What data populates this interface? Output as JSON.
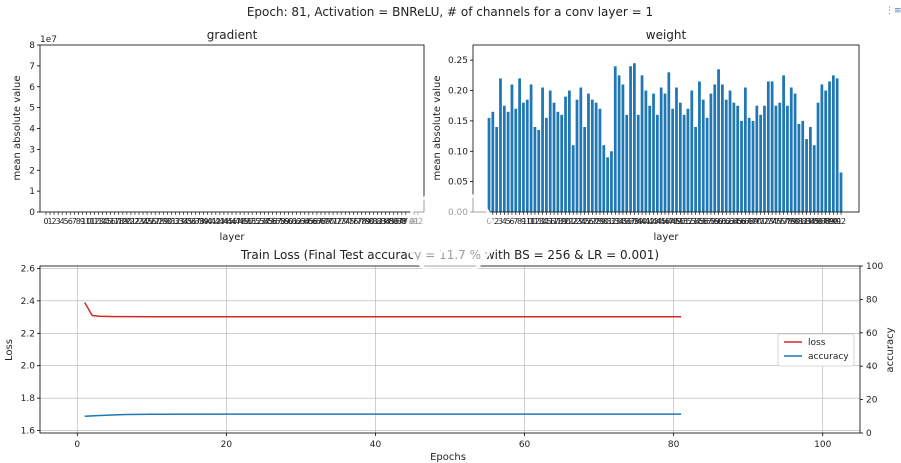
{
  "suptitle": "Epoch: 81, Activation = BNReLU, # of channels for a conv layer = 1",
  "colors": {
    "bar": "#1f77b4",
    "loss": "#d62728",
    "accuracy": "#1f77b4",
    "grid": "#b0b0b0"
  },
  "chart_data": [
    {
      "type": "bar",
      "title": "gradient",
      "xlabel": "layer",
      "ylabel": "mean absolute value",
      "offset_text": "1e7",
      "ylim": [
        0,
        8
      ],
      "yticks": [
        0,
        1,
        2,
        3,
        4,
        5,
        6,
        7,
        8
      ],
      "values": []
    },
    {
      "type": "bar",
      "title": "weight",
      "xlabel": "layer",
      "ylabel": "mean absolute value",
      "ylim": [
        0,
        0.275
      ],
      "yticks": [
        "0.00",
        "0.05",
        "0.10",
        "0.15",
        "0.20",
        "0.25"
      ],
      "values": [
        0.155,
        0.165,
        0.14,
        0.22,
        0.175,
        0.165,
        0.21,
        0.17,
        0.22,
        0.18,
        0.185,
        0.21,
        0.14,
        0.135,
        0.205,
        0.155,
        0.2,
        0.18,
        0.165,
        0.16,
        0.19,
        0.2,
        0.11,
        0.185,
        0.205,
        0.14,
        0.195,
        0.185,
        0.18,
        0.17,
        0.11,
        0.09,
        0.1,
        0.24,
        0.225,
        0.21,
        0.16,
        0.24,
        0.245,
        0.16,
        0.225,
        0.2,
        0.175,
        0.195,
        0.16,
        0.205,
        0.195,
        0.23,
        0.17,
        0.205,
        0.18,
        0.16,
        0.17,
        0.2,
        0.14,
        0.215,
        0.185,
        0.155,
        0.195,
        0.21,
        0.235,
        0.21,
        0.185,
        0.2,
        0.18,
        0.175,
        0.15,
        0.205,
        0.155,
        0.15,
        0.175,
        0.16,
        0.175,
        0.215,
        0.215,
        0.175,
        0.18,
        0.225,
        0.175,
        0.205,
        0.195,
        0.145,
        0.15,
        0.12,
        0.14,
        0.11,
        0.18,
        0.21,
        0.2,
        0.215,
        0.225,
        0.22,
        0.065
      ]
    },
    {
      "type": "line",
      "title": "Train Loss (Final Test accuracy = 11.7 % with BS = 256 & LR = 0.001)",
      "xlabel": "Epochs",
      "ylabel": "Loss",
      "y2label": "accuracy",
      "xlim": [
        -5,
        105
      ],
      "ylim": [
        1.585,
        2.615
      ],
      "y2lim": [
        0,
        100
      ],
      "xticks": [
        0,
        20,
        40,
        60,
        80,
        100
      ],
      "yticks": [
        "1.6",
        "1.8",
        "2.0",
        "2.2",
        "2.4",
        "2.6"
      ],
      "y2ticks": [
        0,
        20,
        40,
        60,
        80,
        100
      ],
      "legend_position": "right",
      "series": [
        {
          "name": "loss",
          "axis": "left",
          "x": [
            1,
            2,
            3,
            5,
            10,
            20,
            40,
            60,
            81
          ],
          "y": [
            2.39,
            2.31,
            2.305,
            2.303,
            2.302,
            2.302,
            2.302,
            2.302,
            2.302
          ]
        },
        {
          "name": "accuracy",
          "axis": "right",
          "x": [
            1,
            3,
            6,
            10,
            20,
            40,
            60,
            81
          ],
          "y": [
            10.0,
            10.5,
            11.0,
            11.2,
            11.3,
            11.3,
            11.3,
            11.3
          ]
        }
      ]
    }
  ]
}
